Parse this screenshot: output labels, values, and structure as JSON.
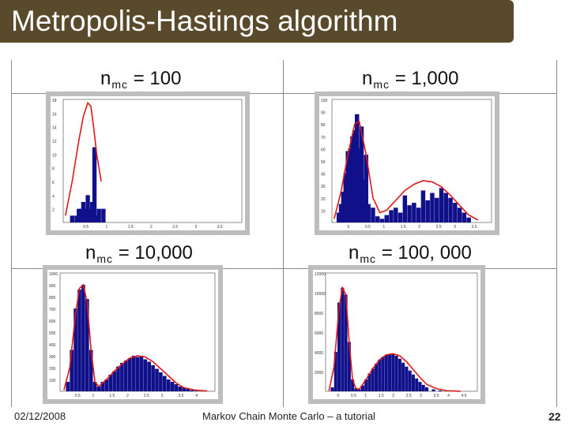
{
  "slide": {
    "title": "Metropolis-Hastings algorithm",
    "date": "02/12/2008",
    "footer_center": "Markov Chain Monte Carlo – a tutorial",
    "page_number": "22"
  },
  "panels": [
    {
      "id": "p1",
      "label_base": "n",
      "label_sub": "mc",
      "label_rest": " = 100"
    },
    {
      "id": "p2",
      "label_base": "n",
      "label_sub": "mc",
      "label_rest": " = 1,000"
    },
    {
      "id": "p3",
      "label_base": "n",
      "label_sub": "mc",
      "label_rest": " = 10,000"
    },
    {
      "id": "p4",
      "label_base": "n",
      "label_sub": "mc",
      "label_rest": " = 100, 000"
    }
  ],
  "colors": {
    "title_bg": "#5a4a2c",
    "bar": "#10108a",
    "curve": "#e01818",
    "frame": "#bdbdbd"
  },
  "chart_data": [
    {
      "type": "bar",
      "panel": "p1",
      "xlim": [
        0,
        4
      ],
      "ylim": [
        0,
        18
      ],
      "x_ticks": [
        "0.5",
        "1",
        "1.5",
        "2",
        "2.5",
        "3",
        "3.5"
      ],
      "y_ticks": [
        "18",
        "16",
        "14",
        "12",
        "10",
        "8",
        "6",
        "4",
        "2"
      ],
      "x": [
        0.2,
        0.3,
        0.35,
        0.4,
        0.45,
        0.5,
        0.55,
        0.6,
        0.65,
        0.7,
        0.75,
        0.8,
        0.9
      ],
      "values": [
        1,
        1,
        2,
        2,
        3,
        2,
        4,
        2,
        3,
        11,
        1,
        2,
        2
      ],
      "curve": {
        "x": [
          0.05,
          0.2,
          0.35,
          0.45,
          0.55,
          0.62,
          0.68,
          0.75,
          0.85
        ],
        "y": [
          1,
          6,
          12,
          15.5,
          17.5,
          17,
          14,
          10,
          6
        ]
      }
    },
    {
      "type": "bar",
      "panel": "p2",
      "xlim": [
        0,
        3.5
      ],
      "ylim": [
        0,
        100
      ],
      "x_ticks": [
        "0",
        "0.5",
        "1",
        "1.5",
        "2",
        "2.5",
        "3",
        "3.5"
      ],
      "y_ticks": [
        "100",
        "90",
        "80",
        "70",
        "60",
        "50",
        "40",
        "30",
        "20",
        "10"
      ],
      "x": [
        0.15,
        0.2,
        0.25,
        0.3,
        0.35,
        0.4,
        0.45,
        0.5,
        0.55,
        0.6,
        0.65,
        0.7,
        0.75,
        0.8,
        0.9,
        1.0,
        1.1,
        1.2,
        1.3,
        1.4,
        1.5,
        1.6,
        1.7,
        1.8,
        1.9,
        2.0,
        2.1,
        2.2,
        2.3,
        2.4,
        2.5,
        2.6,
        2.7,
        2.8,
        2.9,
        3.0
      ],
      "values": [
        8,
        15,
        25,
        40,
        58,
        60,
        70,
        75,
        88,
        60,
        78,
        35,
        55,
        15,
        12,
        5,
        3,
        6,
        10,
        12,
        8,
        22,
        14,
        16,
        12,
        26,
        18,
        24,
        20,
        28,
        24,
        20,
        16,
        12,
        8,
        4
      ],
      "curve": {
        "x": [
          0.05,
          0.2,
          0.35,
          0.5,
          0.6,
          0.75,
          0.9,
          1.05,
          1.2,
          1.4,
          1.6,
          1.8,
          2.0,
          2.2,
          2.4,
          2.6,
          2.8,
          3.0,
          3.2
        ],
        "y": [
          3,
          25,
          55,
          80,
          82,
          55,
          20,
          8,
          10,
          18,
          26,
          31,
          34,
          33,
          29,
          22,
          14,
          6,
          2
        ]
      }
    },
    {
      "type": "bar",
      "panel": "p3",
      "xlim": [
        0,
        4
      ],
      "ylim": [
        0,
        1000
      ],
      "x_ticks": [
        "0.5",
        "1",
        "1.5",
        "2",
        "2.5",
        "3",
        "3.5",
        "4"
      ],
      "y_ticks": [
        "1000",
        "900",
        "800",
        "700",
        "600",
        "500",
        "400",
        "300",
        "200",
        "100"
      ],
      "x": [
        0.2,
        0.3,
        0.4,
        0.5,
        0.6,
        0.7,
        0.8,
        0.9,
        1.0,
        1.1,
        1.2,
        1.3,
        1.4,
        1.5,
        1.6,
        1.7,
        1.8,
        1.9,
        2.0,
        2.1,
        2.2,
        2.3,
        2.4,
        2.5,
        2.6,
        2.7,
        2.8,
        2.9,
        3.0,
        3.1,
        3.2,
        3.3,
        3.4,
        3.5
      ],
      "values": [
        80,
        350,
        700,
        860,
        900,
        780,
        350,
        80,
        40,
        80,
        100,
        140,
        170,
        210,
        240,
        260,
        280,
        300,
        290,
        300,
        270,
        250,
        220,
        190,
        160,
        130,
        100,
        80,
        60,
        40,
        30,
        20,
        10,
        5
      ],
      "curve": {
        "x": [
          0.1,
          0.25,
          0.4,
          0.5,
          0.6,
          0.7,
          0.8,
          0.9,
          1.0,
          1.2,
          1.4,
          1.6,
          1.8,
          2.0,
          2.2,
          2.4,
          2.6,
          2.8,
          3.0,
          3.2,
          3.5,
          3.8
        ],
        "y": [
          10,
          200,
          650,
          870,
          900,
          750,
          350,
          80,
          40,
          100,
          170,
          230,
          280,
          300,
          290,
          250,
          190,
          130,
          70,
          30,
          10,
          2
        ]
      }
    },
    {
      "type": "bar",
      "panel": "p4",
      "xlim": [
        0,
        4.5
      ],
      "ylim": [
        0,
        12000
      ],
      "x_ticks": [
        "0",
        "0.5",
        "1",
        "1.5",
        "2",
        "2.5",
        "3",
        "3.5",
        "4",
        "4.5"
      ],
      "y_ticks": [
        "12000",
        "10000",
        "8000",
        "6000",
        "4000",
        "2000"
      ],
      "x": [
        0.2,
        0.3,
        0.4,
        0.5,
        0.6,
        0.7,
        0.8,
        0.9,
        1.0,
        1.1,
        1.2,
        1.3,
        1.4,
        1.5,
        1.6,
        1.7,
        1.8,
        1.9,
        2.0,
        2.1,
        2.2,
        2.3,
        2.4,
        2.5,
        2.6,
        2.7,
        2.8,
        2.9,
        3.0,
        3.2,
        3.4,
        3.6
      ],
      "values": [
        400,
        4000,
        9000,
        10500,
        9800,
        5000,
        1200,
        300,
        200,
        600,
        1200,
        1800,
        2300,
        2800,
        3200,
        3500,
        3700,
        3800,
        3750,
        3600,
        3300,
        2900,
        2500,
        2100,
        1700,
        1300,
        950,
        650,
        400,
        200,
        80,
        20
      ],
      "curve": {
        "x": [
          0.1,
          0.25,
          0.4,
          0.5,
          0.6,
          0.7,
          0.8,
          0.9,
          1.0,
          1.2,
          1.4,
          1.6,
          1.8,
          2.0,
          2.2,
          2.4,
          2.6,
          2.8,
          3.0,
          3.3,
          3.6,
          4.0
        ],
        "y": [
          50,
          2500,
          8500,
          10500,
          9800,
          5000,
          1200,
          300,
          200,
          1200,
          2300,
          3200,
          3700,
          3800,
          3600,
          3000,
          2200,
          1400,
          700,
          250,
          60,
          5
        ]
      }
    }
  ]
}
